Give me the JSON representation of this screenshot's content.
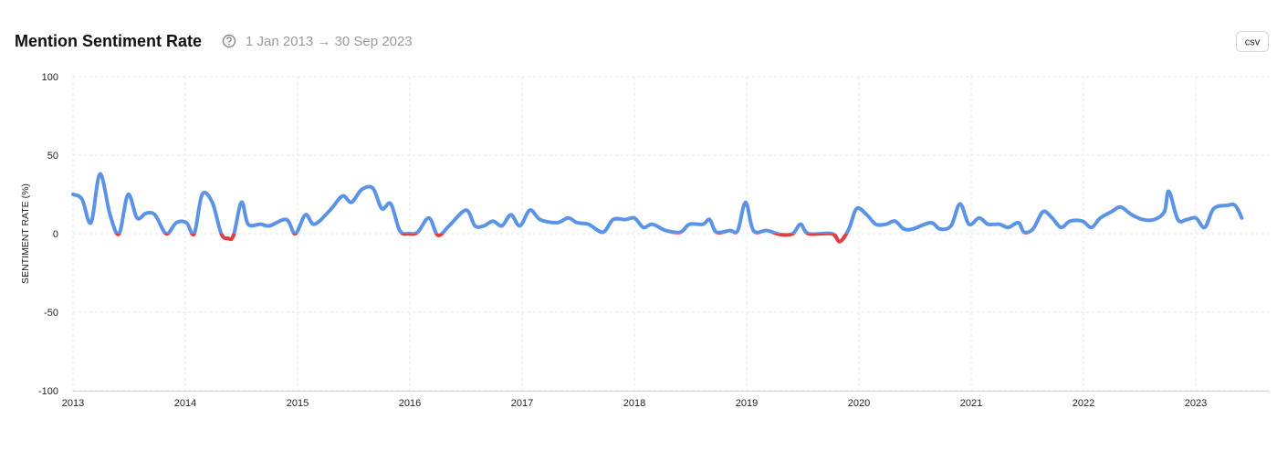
{
  "toolbar": {
    "export_button": "csv"
  },
  "chart_data": {
    "type": "line",
    "title": "Mention Sentiment Rate",
    "subtitle": "1 Jan 2013 → 30 Sep 2023",
    "y_label": "SENTIMENT RATE (%)",
    "color": "#5b93e6",
    "negative_color": "#e0403f",
    "grid": true,
    "xlim": [
      2013,
      2023.65
    ],
    "xticks": [
      2013,
      2014,
      2015,
      2016,
      2017,
      2018,
      2019,
      2020,
      2021,
      2022,
      2023
    ],
    "ylim": [
      -100,
      100
    ],
    "yticks": [
      100,
      50,
      0,
      -50,
      -100
    ],
    "x": [
      2013.0,
      2013.08,
      2013.16,
      2013.24,
      2013.33,
      2013.41,
      2013.49,
      2013.57,
      2013.65,
      2013.73,
      2013.83,
      2013.92,
      2014.01,
      2014.08,
      2014.15,
      2014.24,
      2014.32,
      2014.38,
      2014.43,
      2014.5,
      2014.56,
      2014.67,
      2014.75,
      2014.9,
      2014.98,
      2015.07,
      2015.15,
      2015.29,
      2015.4,
      2015.48,
      2015.57,
      2015.67,
      2015.75,
      2015.83,
      2015.91,
      2015.99,
      2016.07,
      2016.17,
      2016.25,
      2016.35,
      2016.5,
      2016.58,
      2016.66,
      2016.74,
      2016.82,
      2016.9,
      2016.98,
      2017.07,
      2017.16,
      2017.31,
      2017.41,
      2017.49,
      2017.59,
      2017.72,
      2017.81,
      2017.92,
      2018.0,
      2018.08,
      2018.16,
      2018.28,
      2018.41,
      2018.49,
      2018.61,
      2018.67,
      2018.73,
      2018.85,
      2018.92,
      2018.99,
      2019.06,
      2019.18,
      2019.3,
      2019.41,
      2019.48,
      2019.55,
      2019.76,
      2019.83,
      2019.91,
      2019.98,
      2020.07,
      2020.15,
      2020.24,
      2020.32,
      2020.4,
      2020.48,
      2020.64,
      2020.72,
      2020.82,
      2020.9,
      2020.98,
      2021.07,
      2021.15,
      2021.25,
      2021.33,
      2021.42,
      2021.47,
      2021.55,
      2021.64,
      2021.72,
      2021.8,
      2021.88,
      2021.99,
      2022.07,
      2022.15,
      2022.25,
      2022.33,
      2022.43,
      2022.53,
      2022.63,
      2022.72,
      2022.76,
      2022.84,
      2022.92,
      2023.0,
      2023.08,
      2023.16,
      2023.28,
      2023.35,
      2023.41
    ],
    "values": [
      25,
      22,
      7,
      38,
      12,
      0,
      25,
      10,
      13,
      12,
      0,
      7,
      7,
      0,
      25,
      20,
      0,
      -3,
      -1,
      20,
      6,
      6,
      5,
      9,
      0,
      12,
      6,
      15,
      24,
      20,
      28,
      29,
      16,
      19,
      2,
      0,
      1,
      10,
      -1,
      5,
      15,
      5,
      5,
      8,
      5,
      12,
      5,
      15,
      9,
      7,
      10,
      7,
      6,
      1,
      9,
      9,
      10,
      4,
      6,
      2,
      1,
      6,
      6,
      9,
      1,
      2,
      2,
      20,
      2,
      2,
      -0.5,
      0,
      6,
      0,
      0,
      -5,
      3,
      16,
      12,
      6,
      6,
      8,
      3,
      3,
      7,
      3,
      5,
      19,
      6,
      10,
      6,
      6,
      4,
      7,
      1,
      3,
      14,
      10,
      4,
      8,
      8,
      4,
      10,
      14,
      17,
      12,
      9,
      9,
      14,
      27,
      9,
      9,
      10,
      4,
      16,
      18,
      18,
      10
    ]
  }
}
